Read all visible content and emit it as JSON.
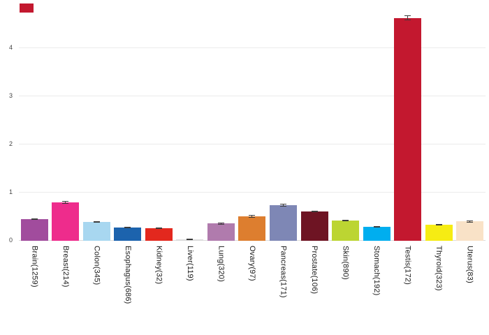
{
  "chart_data": {
    "type": "bar",
    "title": "",
    "xlabel": "",
    "ylabel": "",
    "categories": [
      "Brain(1259)",
      "Breast(214)",
      "Colon(345)",
      "Esophagus(686)",
      "Kidney(32)",
      "Liver(119)",
      "Lung(320)",
      "Ovary(97)",
      "Pancreas(171)",
      "Prostate(106)",
      "Skin(890)",
      "Stomach(192)",
      "Testis(172)",
      "Thyroid(323)",
      "Uterus(83)"
    ],
    "values": [
      0.45,
      0.8,
      0.39,
      0.28,
      0.26,
      0.03,
      0.36,
      0.51,
      0.74,
      0.61,
      0.42,
      0.29,
      4.63,
      0.33,
      0.4
    ],
    "errors": [
      0.02,
      0.03,
      0.02,
      0.012,
      0.02,
      0.012,
      0.02,
      0.025,
      0.025,
      0.02,
      0.015,
      0.018,
      0.05,
      0.015,
      0.02
    ],
    "colors": [
      "#A14C9D",
      "#EE2C8C",
      "#A8D7F0",
      "#1C63AD",
      "#E3281E",
      "#DCDCDC",
      "#B07BAD",
      "#DD7E2F",
      "#7E87B5",
      "#6E1423",
      "#BCD532",
      "#00AEEF",
      "#C3182F",
      "#F6EC13",
      "#F9E2C7"
    ],
    "yticks": [
      0,
      1,
      2,
      3,
      4
    ],
    "ylim": [
      0,
      5
    ],
    "grid": true,
    "legend": "none",
    "error_bar_color": "#3c3c3c"
  },
  "decor": {
    "corner_mark_color": "#C3182F"
  }
}
